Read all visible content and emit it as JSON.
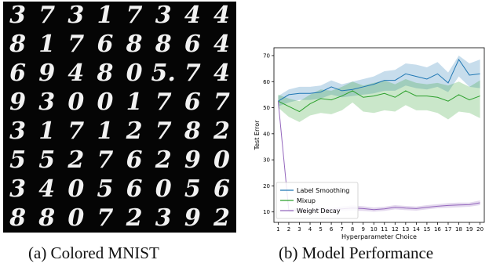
{
  "panel_a": {
    "caption": "(a) Colored MNIST",
    "digits": [
      [
        "3",
        "7",
        "3",
        "1",
        "7",
        "3",
        "4",
        "4"
      ],
      [
        "8",
        "1",
        "7",
        "6",
        "8",
        "8",
        "6",
        "4"
      ],
      [
        "6",
        "9",
        "4",
        "8",
        "0",
        "5.",
        "7",
        "4"
      ],
      [
        "9",
        "3",
        "0",
        "0",
        "1",
        "7",
        "6",
        "7"
      ],
      [
        "3",
        "1",
        "7",
        "1",
        "2",
        "7",
        "8",
        "2"
      ],
      [
        "5",
        "5",
        "2",
        "7",
        "6",
        "2",
        "9",
        "0"
      ],
      [
        "3",
        "4",
        "0",
        "5",
        "6",
        "0",
        "5",
        "6"
      ],
      [
        "8",
        "8",
        "0",
        "7",
        "2",
        "3",
        "9",
        "2"
      ]
    ]
  },
  "panel_b": {
    "caption": "(b) Model Performance"
  },
  "chart_data": {
    "type": "line",
    "xlabel": "Hyperparameter Choice",
    "ylabel": "Test Error",
    "x": [
      1,
      2,
      3,
      4,
      5,
      6,
      7,
      8,
      9,
      10,
      11,
      12,
      13,
      14,
      15,
      16,
      17,
      18,
      19,
      20
    ],
    "xlim": [
      0.6,
      20.4
    ],
    "ylim": [
      6,
      73
    ],
    "yticks": [
      10,
      20,
      30,
      40,
      50,
      60,
      70
    ],
    "legend_position": "lower-left",
    "grid": false,
    "series": [
      {
        "name": "Label Smoothing",
        "color": "#1f77b4",
        "values": [
          52.5,
          55,
          55.5,
          55.5,
          56,
          58,
          56.5,
          57,
          58,
          59,
          60.5,
          60.5,
          63,
          62,
          61,
          63,
          59.5,
          68.5,
          62.5,
          63
        ],
        "lower": [
          50.5,
          52,
          53,
          53,
          53.5,
          55,
          54,
          54.5,
          55,
          55.5,
          56.5,
          56.5,
          58.5,
          57.5,
          57,
          58,
          56,
          62,
          58,
          57.5
        ],
        "upper": [
          54.5,
          57,
          58,
          58,
          58.5,
          60.5,
          59,
          60,
          61,
          62,
          64,
          64.5,
          67,
          66.5,
          65.5,
          67.5,
          63.5,
          70,
          67,
          68.5
        ]
      },
      {
        "name": "Mixup",
        "color": "#2ca02c",
        "values": [
          52.5,
          50.5,
          48.5,
          51.5,
          53.5,
          53,
          54.5,
          56.5,
          54,
          54.5,
          55.5,
          54,
          56.5,
          54.5,
          54.5,
          54,
          52.5,
          55,
          53,
          54.5
        ],
        "lower": [
          50,
          46.5,
          44.5,
          47,
          48,
          47.5,
          49,
          52,
          48.5,
          48,
          49,
          48.5,
          51,
          49,
          49,
          48,
          45.5,
          48.5,
          48,
          46
        ],
        "upper": [
          55,
          53.5,
          52.5,
          55,
          57,
          56.5,
          58,
          60,
          58.5,
          59.5,
          60.5,
          59,
          61,
          59.5,
          59,
          59.5,
          58.5,
          60,
          58,
          60.5
        ]
      },
      {
        "name": "Weight Decay",
        "color": "#9467bd",
        "values": [
          52.5,
          10.5,
          10.8,
          10.6,
          11,
          10.8,
          11.2,
          11.5,
          11.3,
          10.9,
          11.2,
          11.8,
          11.5,
          11.3,
          11.8,
          12.2,
          12.5,
          12.7,
          12.8,
          13.5
        ],
        "lower": [
          52.5,
          9.8,
          10,
          9.8,
          10.2,
          10,
          10.3,
          10.5,
          10.4,
          10.1,
          10.4,
          11,
          10.7,
          10.5,
          11,
          11.4,
          11.6,
          11.8,
          12,
          12.6
        ],
        "upper": [
          52.5,
          11.2,
          11.6,
          11.4,
          11.8,
          11.6,
          12.1,
          12.5,
          12.2,
          11.7,
          12,
          12.6,
          12.3,
          12.1,
          12.6,
          13,
          13.4,
          13.6,
          13.6,
          14.4
        ]
      }
    ]
  }
}
